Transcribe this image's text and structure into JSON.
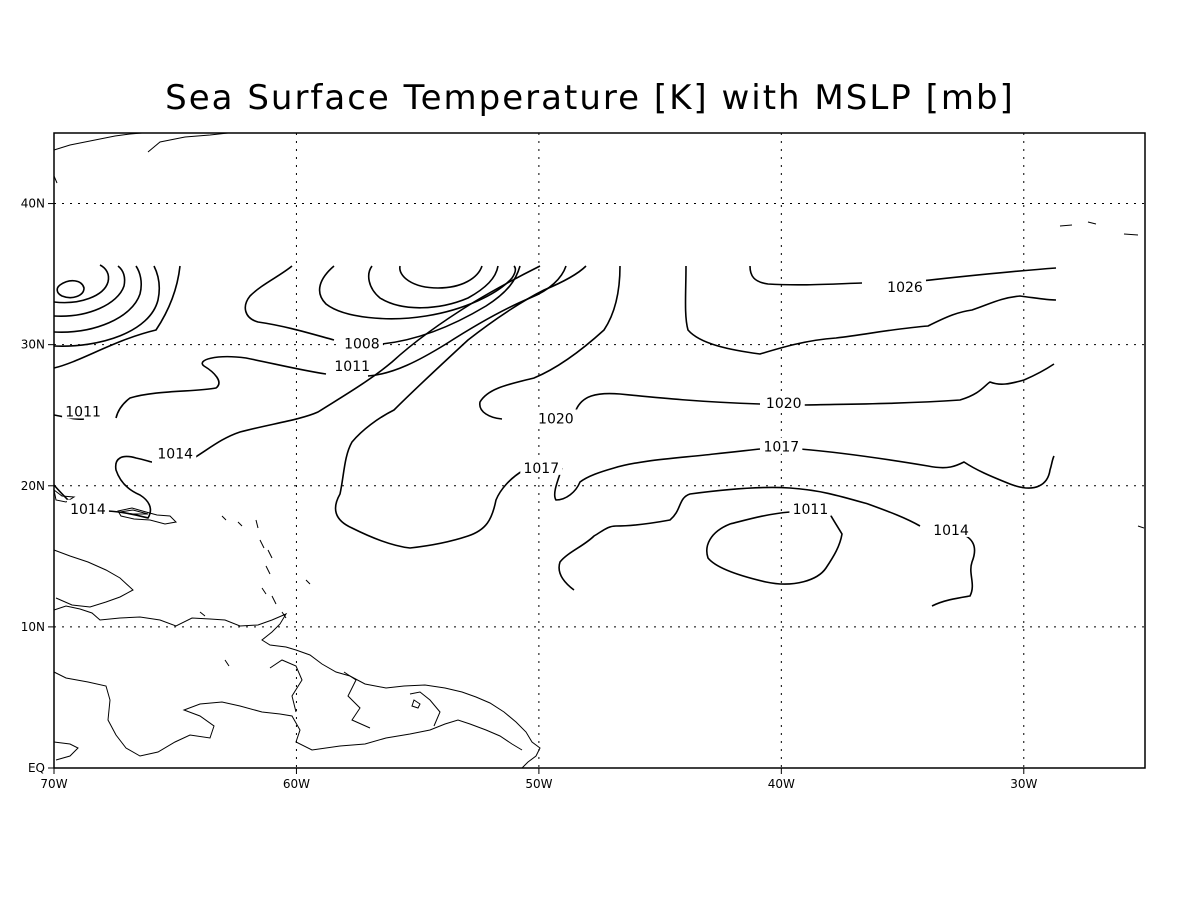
{
  "title": "Sea Surface Temperature [K] with MSLP [mb]",
  "map": {
    "lon_range": [
      -70,
      -25
    ],
    "lat_range": [
      0,
      45
    ],
    "grid_lines": true,
    "x_ticks": [
      {
        "lon": -70,
        "label": "70W"
      },
      {
        "lon": -60,
        "label": "60W"
      },
      {
        "lon": -50,
        "label": "50W"
      },
      {
        "lon": -40,
        "label": "40W"
      },
      {
        "lon": -30,
        "label": "30W"
      }
    ],
    "y_ticks": [
      {
        "lat": 0,
        "label": "EQ"
      },
      {
        "lat": 10,
        "label": "10N"
      },
      {
        "lat": 20,
        "label": "20N"
      },
      {
        "lat": 30,
        "label": "30N"
      },
      {
        "lat": 40,
        "label": "40N"
      }
    ],
    "contour_labels": [
      {
        "text": "1026",
        "lon": -34.9,
        "lat": 34.0
      },
      {
        "text": "1008",
        "lon": -57.3,
        "lat": 30.0
      },
      {
        "text": "1011",
        "lon": -57.7,
        "lat": 28.4
      },
      {
        "text": "1011",
        "lon": -68.8,
        "lat": 25.2
      },
      {
        "text": "1020",
        "lon": -49.3,
        "lat": 24.7
      },
      {
        "text": "1020",
        "lon": -39.9,
        "lat": 25.8
      },
      {
        "text": "1014",
        "lon": -65.0,
        "lat": 22.2
      },
      {
        "text": "1017",
        "lon": -49.9,
        "lat": 21.2
      },
      {
        "text": "1017",
        "lon": -40.0,
        "lat": 22.7
      },
      {
        "text": "1014",
        "lon": -68.6,
        "lat": 18.3
      },
      {
        "text": "1011",
        "lon": -38.8,
        "lat": 18.3
      },
      {
        "text": "1014",
        "lon": -33.0,
        "lat": 16.8
      }
    ]
  }
}
